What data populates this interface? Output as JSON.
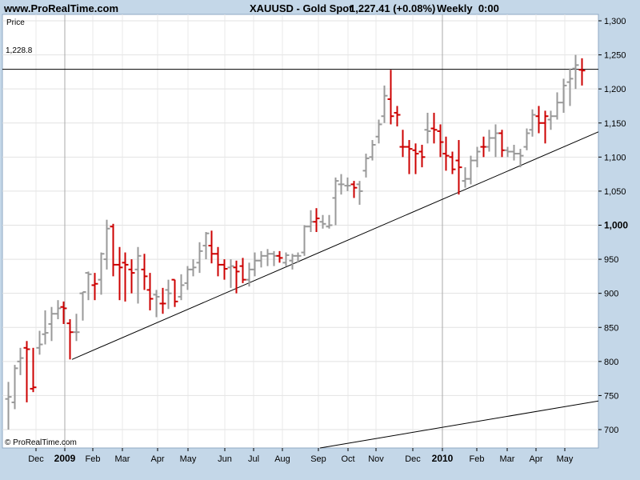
{
  "header": {
    "site": "www.ProRealTime.com",
    "symbol": "XAUUSD - Gold Spot",
    "price_change": "1,227.41 (+0.08%)",
    "period": "Weekly",
    "time": "0:00"
  },
  "panel": {
    "label": "Price",
    "reference_line_value": "1,228.8",
    "watermark": "© ProRealTime.com"
  },
  "colors": {
    "up": "#999999",
    "down": "#CC0000",
    "background": "#FFFFFF",
    "frame": "#C4D7E8"
  },
  "chart_data": {
    "type": "ohlc",
    "y_axis": {
      "range": [
        690,
        1305
      ],
      "ticks": [
        700,
        750,
        800,
        850,
        900,
        950,
        1000,
        1050,
        1100,
        1150,
        1200,
        1250,
        1300
      ],
      "tick_labels": [
        "700",
        "750",
        "800",
        "850",
        "900",
        "950",
        "1,000",
        "1,050",
        "1,100",
        "1,150",
        "1,200",
        "1,250",
        "1,300"
      ],
      "bold_tick": "1,000"
    },
    "x_axis": {
      "labels": [
        "Dec",
        "2009",
        "Feb",
        "Mar",
        "Apr",
        "May",
        "Jun",
        "Jul",
        "Aug",
        "Sep",
        "Oct",
        "Nov",
        "Dec",
        "2010",
        "Feb",
        "Mar",
        "Apr",
        "May"
      ],
      "bold_labels": [
        "2009",
        "2010"
      ]
    },
    "reference_line": 1228.8,
    "trend_lines": [
      {
        "from": [
          "2009 Jan wk3",
          803
        ],
        "to": [
          "2010 May end",
          1137
        ]
      },
      {
        "from": [
          "2009 Sep wk1",
          690
        ],
        "to": [
          "2010 May end",
          742
        ]
      }
    ],
    "bars": [
      {
        "open": 745,
        "high": 770,
        "low": 700,
        "close": 748,
        "dir": "up"
      },
      {
        "open": 740,
        "high": 795,
        "low": 730,
        "close": 790,
        "dir": "up"
      },
      {
        "open": 800,
        "high": 820,
        "low": 780,
        "close": 805,
        "dir": "up"
      },
      {
        "open": 820,
        "high": 830,
        "low": 740,
        "close": 818,
        "dir": "down"
      },
      {
        "open": 760,
        "high": 820,
        "low": 755,
        "close": 762,
        "dir": "down"
      },
      {
        "open": 820,
        "high": 845,
        "low": 810,
        "close": 825,
        "dir": "up"
      },
      {
        "open": 840,
        "high": 875,
        "low": 825,
        "close": 842,
        "dir": "up"
      },
      {
        "open": 855,
        "high": 880,
        "low": 830,
        "close": 870,
        "dir": "up"
      },
      {
        "open": 870,
        "high": 890,
        "low": 862,
        "close": 878,
        "dir": "up"
      },
      {
        "open": 880,
        "high": 888,
        "low": 855,
        "close": 878,
        "dir": "down"
      },
      {
        "open": 856,
        "high": 862,
        "low": 803,
        "close": 843,
        "dir": "down"
      },
      {
        "open": 843,
        "high": 870,
        "low": 830,
        "close": 843,
        "dir": "up"
      },
      {
        "open": 900,
        "high": 902,
        "low": 860,
        "close": 902,
        "dir": "up"
      },
      {
        "open": 930,
        "high": 932,
        "low": 890,
        "close": 928,
        "dir": "up"
      },
      {
        "open": 912,
        "high": 930,
        "low": 890,
        "close": 914,
        "dir": "down"
      },
      {
        "open": 920,
        "high": 960,
        "low": 898,
        "close": 958,
        "dir": "up"
      },
      {
        "open": 950,
        "high": 1008,
        "low": 935,
        "close": 995,
        "dir": "up"
      },
      {
        "open": 998,
        "high": 1002,
        "low": 925,
        "close": 942,
        "dir": "down"
      },
      {
        "open": 942,
        "high": 968,
        "low": 890,
        "close": 938,
        "dir": "down"
      },
      {
        "open": 945,
        "high": 960,
        "low": 888,
        "close": 942,
        "dir": "down"
      },
      {
        "open": 935,
        "high": 950,
        "low": 900,
        "close": 930,
        "dir": "down"
      },
      {
        "open": 935,
        "high": 968,
        "low": 885,
        "close": 955,
        "dir": "up"
      },
      {
        "open": 935,
        "high": 958,
        "low": 905,
        "close": 925,
        "dir": "down"
      },
      {
        "open": 905,
        "high": 930,
        "low": 875,
        "close": 892,
        "dir": "down"
      },
      {
        "open": 898,
        "high": 905,
        "low": 865,
        "close": 895,
        "dir": "up"
      },
      {
        "open": 885,
        "high": 908,
        "low": 870,
        "close": 885,
        "dir": "down"
      },
      {
        "open": 905,
        "high": 920,
        "low": 877,
        "close": 900,
        "dir": "up"
      },
      {
        "open": 920,
        "high": 920,
        "low": 880,
        "close": 888,
        "dir": "down"
      },
      {
        "open": 895,
        "high": 928,
        "low": 890,
        "close": 912,
        "dir": "up"
      },
      {
        "open": 915,
        "high": 940,
        "low": 905,
        "close": 935,
        "dir": "up"
      },
      {
        "open": 935,
        "high": 950,
        "low": 925,
        "close": 938,
        "dir": "up"
      },
      {
        "open": 945,
        "high": 975,
        "low": 930,
        "close": 962,
        "dir": "up"
      },
      {
        "open": 970,
        "high": 990,
        "low": 950,
        "close": 988,
        "dir": "up"
      },
      {
        "open": 970,
        "high": 992,
        "low": 944,
        "close": 958,
        "dir": "down"
      },
      {
        "open": 958,
        "high": 968,
        "low": 925,
        "close": 942,
        "dir": "down"
      },
      {
        "open": 942,
        "high": 950,
        "low": 920,
        "close": 936,
        "dir": "down"
      },
      {
        "open": 938,
        "high": 950,
        "low": 908,
        "close": 940,
        "dir": "up"
      },
      {
        "open": 938,
        "high": 948,
        "low": 900,
        "close": 932,
        "dir": "down"
      },
      {
        "open": 940,
        "high": 952,
        "low": 915,
        "close": 920,
        "dir": "down"
      },
      {
        "open": 920,
        "high": 945,
        "low": 910,
        "close": 935,
        "dir": "up"
      },
      {
        "open": 935,
        "high": 960,
        "low": 925,
        "close": 948,
        "dir": "up"
      },
      {
        "open": 948,
        "high": 962,
        "low": 938,
        "close": 955,
        "dir": "up"
      },
      {
        "open": 955,
        "high": 965,
        "low": 940,
        "close": 958,
        "dir": "up"
      },
      {
        "open": 958,
        "high": 962,
        "low": 940,
        "close": 955,
        "dir": "up"
      },
      {
        "open": 955,
        "high": 962,
        "low": 945,
        "close": 952,
        "dir": "down"
      },
      {
        "open": 945,
        "high": 960,
        "low": 940,
        "close": 956,
        "dir": "up"
      },
      {
        "open": 948,
        "high": 958,
        "low": 935,
        "close": 955,
        "dir": "up"
      },
      {
        "open": 955,
        "high": 960,
        "low": 945,
        "close": 955,
        "dir": "up"
      },
      {
        "open": 960,
        "high": 1000,
        "low": 955,
        "close": 998,
        "dir": "up"
      },
      {
        "open": 998,
        "high": 1022,
        "low": 990,
        "close": 1005,
        "dir": "up"
      },
      {
        "open": 1005,
        "high": 1025,
        "low": 990,
        "close": 1010,
        "dir": "down"
      },
      {
        "open": 1005,
        "high": 1015,
        "low": 995,
        "close": 1002,
        "dir": "up"
      },
      {
        "open": 998,
        "high": 1015,
        "low": 995,
        "close": 1000,
        "dir": "up"
      },
      {
        "open": 1040,
        "high": 1070,
        "low": 1000,
        "close": 1065,
        "dir": "up"
      },
      {
        "open": 1060,
        "high": 1075,
        "low": 1045,
        "close": 1060,
        "dir": "up"
      },
      {
        "open": 1058,
        "high": 1070,
        "low": 1050,
        "close": 1058,
        "dir": "up"
      },
      {
        "open": 1060,
        "high": 1065,
        "low": 1040,
        "close": 1055,
        "dir": "down"
      },
      {
        "open": 1060,
        "high": 1065,
        "low": 1030,
        "close": 1050,
        "dir": "up"
      },
      {
        "open": 1080,
        "high": 1105,
        "low": 1070,
        "close": 1098,
        "dir": "up"
      },
      {
        "open": 1100,
        "high": 1125,
        "low": 1095,
        "close": 1118,
        "dir": "up"
      },
      {
        "open": 1130,
        "high": 1155,
        "low": 1120,
        "close": 1148,
        "dir": "up"
      },
      {
        "open": 1160,
        "high": 1205,
        "low": 1150,
        "close": 1190,
        "dir": "up"
      },
      {
        "open": 1185,
        "high": 1228,
        "low": 1148,
        "close": 1160,
        "dir": "down"
      },
      {
        "open": 1165,
        "high": 1175,
        "low": 1145,
        "close": 1162,
        "dir": "down"
      },
      {
        "open": 1115,
        "high": 1140,
        "low": 1100,
        "close": 1115,
        "dir": "down"
      },
      {
        "open": 1115,
        "high": 1125,
        "low": 1075,
        "close": 1112,
        "dir": "down"
      },
      {
        "open": 1110,
        "high": 1120,
        "low": 1075,
        "close": 1105,
        "dir": "down"
      },
      {
        "open": 1108,
        "high": 1118,
        "low": 1085,
        "close": 1100,
        "dir": "down"
      },
      {
        "open": 1140,
        "high": 1165,
        "low": 1120,
        "close": 1138,
        "dir": "up"
      },
      {
        "open": 1142,
        "high": 1165,
        "low": 1120,
        "close": 1140,
        "dir": "down"
      },
      {
        "open": 1138,
        "high": 1148,
        "low": 1100,
        "close": 1122,
        "dir": "down"
      },
      {
        "open": 1105,
        "high": 1130,
        "low": 1080,
        "close": 1102,
        "dir": "down"
      },
      {
        "open": 1100,
        "high": 1108,
        "low": 1075,
        "close": 1082,
        "dir": "down"
      },
      {
        "open": 1095,
        "high": 1125,
        "low": 1045,
        "close": 1085,
        "dir": "down"
      },
      {
        "open": 1065,
        "high": 1085,
        "low": 1055,
        "close": 1068,
        "dir": "up"
      },
      {
        "open": 1068,
        "high": 1102,
        "low": 1060,
        "close": 1095,
        "dir": "up"
      },
      {
        "open": 1095,
        "high": 1115,
        "low": 1085,
        "close": 1108,
        "dir": "up"
      },
      {
        "open": 1115,
        "high": 1130,
        "low": 1100,
        "close": 1115,
        "dir": "down"
      },
      {
        "open": 1115,
        "high": 1140,
        "low": 1108,
        "close": 1128,
        "dir": "up"
      },
      {
        "open": 1128,
        "high": 1148,
        "low": 1100,
        "close": 1135,
        "dir": "up"
      },
      {
        "open": 1135,
        "high": 1140,
        "low": 1100,
        "close": 1110,
        "dir": "down"
      },
      {
        "open": 1110,
        "high": 1115,
        "low": 1100,
        "close": 1108,
        "dir": "up"
      },
      {
        "open": 1108,
        "high": 1118,
        "low": 1095,
        "close": 1105,
        "dir": "up"
      },
      {
        "open": 1105,
        "high": 1112,
        "low": 1085,
        "close": 1102,
        "dir": "up"
      },
      {
        "open": 1115,
        "high": 1142,
        "low": 1110,
        "close": 1135,
        "dir": "up"
      },
      {
        "open": 1140,
        "high": 1170,
        "low": 1130,
        "close": 1162,
        "dir": "up"
      },
      {
        "open": 1160,
        "high": 1175,
        "low": 1135,
        "close": 1150,
        "dir": "down"
      },
      {
        "open": 1150,
        "high": 1168,
        "low": 1120,
        "close": 1160,
        "dir": "down"
      },
      {
        "open": 1155,
        "high": 1168,
        "low": 1140,
        "close": 1160,
        "dir": "up"
      },
      {
        "open": 1160,
        "high": 1195,
        "low": 1155,
        "close": 1180,
        "dir": "up"
      },
      {
        "open": 1180,
        "high": 1215,
        "low": 1165,
        "close": 1205,
        "dir": "up"
      },
      {
        "open": 1210,
        "high": 1230,
        "low": 1175,
        "close": 1215,
        "dir": "up"
      },
      {
        "open": 1230,
        "high": 1250,
        "low": 1200,
        "close": 1235,
        "dir": "up"
      },
      {
        "open": 1228,
        "high": 1245,
        "low": 1205,
        "close": 1227,
        "dir": "down"
      }
    ]
  }
}
